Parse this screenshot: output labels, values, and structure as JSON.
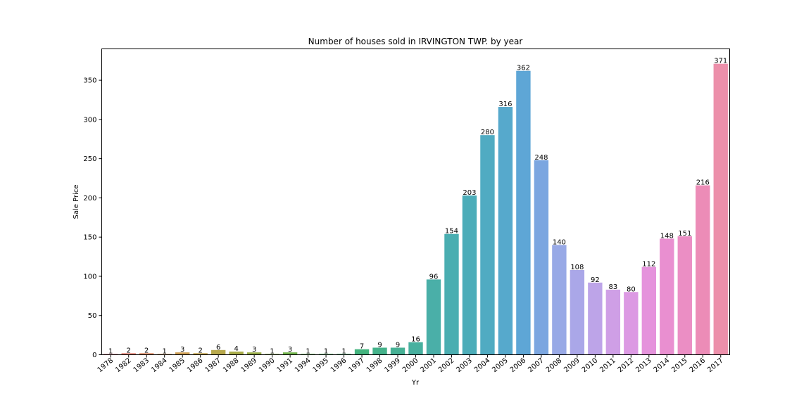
{
  "chart_data": {
    "type": "bar",
    "title": "Number of houses sold in IRVINGTON TWP. by year",
    "xlabel": "Yr",
    "ylabel": "Sale Price",
    "ylim": [
      0,
      390
    ],
    "yticks": [
      0,
      50,
      100,
      150,
      200,
      250,
      300,
      350
    ],
    "grid": false,
    "legend": "none",
    "categories": [
      "1978",
      "1982",
      "1983",
      "1984",
      "1985",
      "1986",
      "1987",
      "1988",
      "1989",
      "1990",
      "1991",
      "1994",
      "1995",
      "1996",
      "1997",
      "1998",
      "1999",
      "2000",
      "2001",
      "2002",
      "2003",
      "2004",
      "2005",
      "2006",
      "2007",
      "2008",
      "2009",
      "2010",
      "2011",
      "2012",
      "2013",
      "2014",
      "2015",
      "2016",
      "2017"
    ],
    "values": [
      1,
      2,
      2,
      1,
      3,
      2,
      6,
      4,
      3,
      1,
      3,
      1,
      1,
      1,
      7,
      9,
      9,
      16,
      96,
      154,
      203,
      280,
      316,
      362,
      248,
      140,
      108,
      92,
      83,
      80,
      112,
      148,
      151,
      216,
      371
    ],
    "colors": [
      "#e8838f",
      "#e6887b",
      "#e0906a",
      "#d99a5f",
      "#cfa056",
      "#c4a652",
      "#b8a94c",
      "#a9ad4a",
      "#9aaf4b",
      "#88b24c",
      "#74b54e",
      "#5cb752",
      "#4ab85f",
      "#45b66f",
      "#43b47e",
      "#44b28a",
      "#46b195",
      "#48b09f",
      "#4aafa8",
      "#4aaeb1",
      "#4cadb9",
      "#50abc2",
      "#56a9cc",
      "#5ea6d6",
      "#7ba6e0",
      "#98a9e6",
      "#aaa7e8",
      "#bda4e8",
      "#cf9fe6",
      "#dc99e3",
      "#e593dc",
      "#e98fd0",
      "#eb8ec4",
      "#ec8cb7",
      "#ec8faa"
    ]
  }
}
